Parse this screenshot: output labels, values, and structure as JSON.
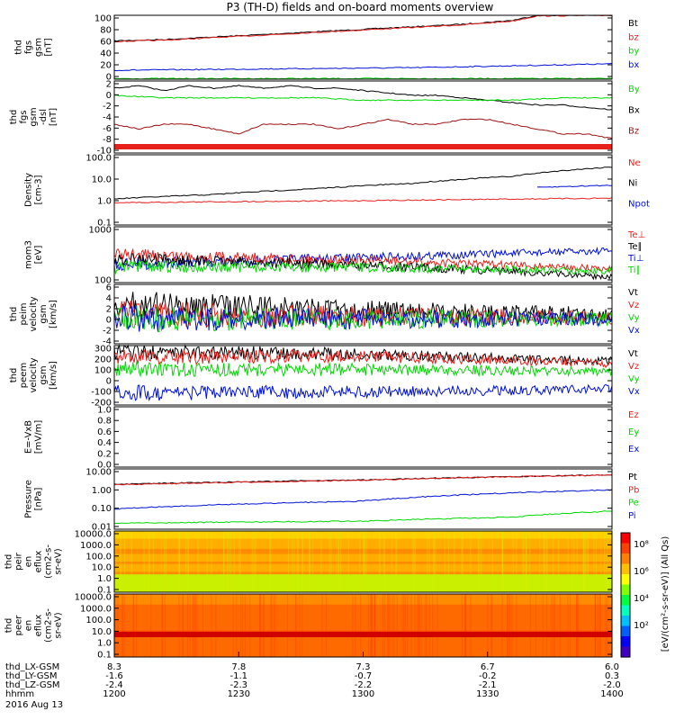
{
  "title": "P3 (TH-D) fields and on-board moments overview",
  "date_label": "2016 Aug 13",
  "colors": {
    "black": "#000000",
    "red": "#e8201c",
    "darkred": "#9c1010",
    "green": "#00d800",
    "blue": "#0010d8",
    "frame": "#000000"
  },
  "chart_data": [
    {
      "type": "line",
      "ylabel": [
        "thd",
        "fgs",
        "gsm",
        "[nT]"
      ],
      "yticks": [
        "100",
        "80",
        "60",
        "40",
        "20",
        "0"
      ],
      "ylim": [
        0,
        100
      ],
      "legend": [
        {
          "name": "Bt",
          "color": "black"
        },
        {
          "name": "bz",
          "color": "red"
        },
        {
          "name": "by",
          "color": "green"
        },
        {
          "name": "bx",
          "color": "blue"
        }
      ],
      "series": [
        {
          "name": "Bt",
          "color": "black",
          "x": [
            0,
            0.1,
            0.2,
            0.3,
            0.4,
            0.5,
            0.6,
            0.7,
            0.8,
            0.85,
            1
          ],
          "y": [
            60,
            62,
            66,
            70,
            74,
            78,
            82,
            86,
            92,
            100,
            100
          ]
        },
        {
          "name": "bz",
          "color": "red",
          "x": [
            0,
            0.1,
            0.2,
            0.3,
            0.4,
            0.5,
            0.6,
            0.7,
            0.8,
            0.85,
            1
          ],
          "y": [
            59,
            61,
            65,
            69,
            73,
            77,
            81,
            85,
            91,
            99,
            100
          ]
        },
        {
          "name": "by",
          "color": "blue",
          "x": [
            0,
            0.3,
            0.6,
            0.8,
            1
          ],
          "y": [
            14,
            16,
            18,
            21,
            24
          ]
        },
        {
          "name": "bx",
          "color": "green",
          "x": [
            0,
            1
          ],
          "y": [
            1,
            1
          ]
        }
      ]
    },
    {
      "type": "line",
      "ylabel": [
        "thd",
        "fgs",
        "gsm",
        "-dsl",
        "[nT]"
      ],
      "yticks": [
        "2",
        "0",
        "-2",
        "-4",
        "-6",
        "-8",
        "-10"
      ],
      "ylim": [
        -12,
        3
      ],
      "legend": [
        {
          "name": "By",
          "color": "green"
        },
        {
          "name": "Bx",
          "color": "black"
        },
        {
          "name": "Bz",
          "color": "darkred"
        }
      ],
      "series": [
        {
          "name": "Bx",
          "color": "black",
          "x": [
            0,
            0.05,
            0.1,
            0.15,
            0.2,
            0.25,
            0.3,
            0.35,
            0.4,
            0.45,
            0.5,
            0.55,
            0.6,
            0.65,
            0.7,
            0.75,
            0.8,
            0.85,
            0.9,
            0.95,
            1
          ],
          "y": [
            1.5,
            2,
            1,
            2,
            1.5,
            2,
            1.5,
            2,
            1.5,
            1.5,
            1,
            0.5,
            0,
            0,
            -0.5,
            -1,
            -1.5,
            -2,
            -2,
            -2.5,
            -3
          ]
        },
        {
          "name": "By",
          "color": "green",
          "x": [
            0,
            0.1,
            0.2,
            0.3,
            0.4,
            0.5,
            0.6,
            0.7,
            0.8,
            0.9,
            1
          ],
          "y": [
            0,
            -0.5,
            -0.5,
            -0.5,
            -0.5,
            -1,
            -1,
            -1,
            -1,
            -0.5,
            -0.5
          ]
        },
        {
          "name": "Bz",
          "color": "darkred",
          "x": [
            0,
            0.05,
            0.1,
            0.15,
            0.2,
            0.25,
            0.3,
            0.35,
            0.4,
            0.45,
            0.5,
            0.55,
            0.6,
            0.65,
            0.7,
            0.75,
            0.8,
            0.85,
            0.9,
            0.95,
            1
          ],
          "y": [
            -6,
            -7,
            -6,
            -6,
            -7,
            -8,
            -6,
            -6,
            -6,
            -7,
            -6,
            -5,
            -6,
            -6,
            -5,
            -5,
            -6,
            -7,
            -8,
            -8,
            -9
          ]
        }
      ]
    },
    {
      "type": "line",
      "ylabel": [
        "Density",
        "[cm-3]"
      ],
      "yticks": [
        "100.0",
        "10.0",
        "1.0",
        "0.1"
      ],
      "ylim": [
        0.1,
        100
      ],
      "scale": "log",
      "legend": [
        {
          "name": "Ne",
          "color": "red"
        },
        {
          "name": "Ni",
          "color": "black"
        },
        {
          "name": "Npot",
          "color": "blue"
        }
      ],
      "series": [
        {
          "name": "Ni",
          "color": "black",
          "x": [
            0,
            0.2,
            0.4,
            0.6,
            0.8,
            1
          ],
          "y": [
            1.3,
            2,
            3.5,
            6,
            12,
            30
          ]
        },
        {
          "name": "Ne",
          "color": "red",
          "x": [
            0,
            0.5,
            1
          ],
          "y": [
            0.9,
            1.1,
            1.4
          ]
        },
        {
          "name": "Npot",
          "color": "blue",
          "x": [
            0.85,
            1
          ],
          "y": [
            4,
            5
          ]
        }
      ]
    },
    {
      "type": "line",
      "ylabel": [
        "mom3",
        "[eV]"
      ],
      "yticks": [
        "1000",
        "100"
      ],
      "ylim": [
        100,
        3000
      ],
      "scale": "log",
      "legend": [
        {
          "name": "Te⊥",
          "color": "red"
        },
        {
          "name": "Te∥",
          "color": "black"
        },
        {
          "name": "Ti⊥",
          "color": "blue"
        },
        {
          "name": "Ti∥",
          "color": "green"
        }
      ],
      "series": [
        {
          "name": "Ti⊥",
          "color": "blue",
          "x": [
            0,
            0.5,
            1
          ],
          "y": [
            300,
            450,
            700
          ]
        },
        {
          "name": "Te⊥",
          "color": "red",
          "x": [
            0,
            0.5,
            1
          ],
          "y": [
            550,
            380,
            230
          ]
        },
        {
          "name": "Te∥",
          "color": "black",
          "x": [
            0,
            0.5,
            1
          ],
          "y": [
            420,
            280,
            140
          ]
        },
        {
          "name": "Ti∥",
          "color": "green",
          "x": [
            0,
            0.5,
            1
          ],
          "y": [
            260,
            250,
            200
          ]
        }
      ]
    },
    {
      "type": "line",
      "ylabel": [
        "thd",
        "peim",
        "velocity",
        "gsm",
        "[km/s]"
      ],
      "yticks": [
        "6",
        "4",
        "2",
        "0",
        "-2",
        "-4"
      ],
      "ylim": [
        -5,
        7
      ],
      "legend": [
        {
          "name": "Vt",
          "color": "black"
        },
        {
          "name": "Vz",
          "color": "red"
        },
        {
          "name": "Vy",
          "color": "green"
        },
        {
          "name": "Vx",
          "color": "blue"
        }
      ],
      "series": [
        {
          "name": "Vt",
          "color": "black",
          "x": [
            0,
            0.3,
            0.6,
            1
          ],
          "y": [
            3,
            2.5,
            1.5,
            1
          ]
        },
        {
          "name": "Vz",
          "color": "red",
          "x": [
            0,
            0.5,
            1
          ],
          "y": [
            1,
            0.5,
            0.3
          ]
        },
        {
          "name": "Vy",
          "color": "green",
          "x": [
            0,
            0.5,
            1
          ],
          "y": [
            0,
            0,
            0
          ]
        },
        {
          "name": "Vx",
          "color": "blue",
          "x": [
            0,
            0.5,
            1
          ],
          "y": [
            0,
            0,
            0
          ]
        }
      ]
    },
    {
      "type": "line",
      "ylabel": [
        "thd",
        "peem",
        "velocity",
        "gsm",
        "[km/s]"
      ],
      "yticks": [
        "300",
        "200",
        "100",
        "0",
        "-100",
        "-200"
      ],
      "ylim": [
        -200,
        300
      ],
      "legend": [
        {
          "name": "Vt",
          "color": "black"
        },
        {
          "name": "Vz",
          "color": "red"
        },
        {
          "name": "Vy",
          "color": "green"
        },
        {
          "name": "Vx",
          "color": "blue"
        }
      ],
      "series": [
        {
          "name": "Vt",
          "color": "black",
          "x": [
            0,
            0.5,
            1
          ],
          "y": [
            250,
            230,
            170
          ]
        },
        {
          "name": "Vz",
          "color": "red",
          "x": [
            0,
            0.5,
            1
          ],
          "y": [
            200,
            210,
            150
          ]
        },
        {
          "name": "Vy",
          "color": "green",
          "x": [
            0,
            0.5,
            1
          ],
          "y": [
            100,
            100,
            80
          ]
        },
        {
          "name": "Vx",
          "color": "blue",
          "x": [
            0,
            0.5,
            0.8,
            1
          ],
          "y": [
            -100,
            -90,
            -80,
            -60
          ]
        }
      ]
    },
    {
      "type": "line",
      "ylabel": [
        "E=-VxB",
        "[mV/m]"
      ],
      "yticks": [
        "1.0",
        "0.8",
        "0.6",
        "0.4",
        "0.2",
        "0.0"
      ],
      "ylim": [
        0,
        1
      ],
      "legend": [
        {
          "name": "Ez",
          "color": "red"
        },
        {
          "name": "Ey",
          "color": "green"
        },
        {
          "name": "Ex",
          "color": "blue"
        }
      ],
      "series": []
    },
    {
      "type": "line",
      "ylabel": [
        "Pressure",
        "[nPa]"
      ],
      "yticks": [
        "10.00",
        "1.00",
        "0.10",
        "0.01"
      ],
      "ylim": [
        0.01,
        10
      ],
      "scale": "log",
      "legend": [
        {
          "name": "Pt",
          "color": "black"
        },
        {
          "name": "Pb",
          "color": "red"
        },
        {
          "name": "Pe",
          "color": "green"
        },
        {
          "name": "Pi",
          "color": "blue"
        }
      ],
      "series": [
        {
          "name": "Pt",
          "color": "black",
          "x": [
            0,
            0.5,
            1
          ],
          "y": [
            1.7,
            2.8,
            5
          ]
        },
        {
          "name": "Pb",
          "color": "red",
          "x": [
            0,
            0.5,
            1
          ],
          "y": [
            1.6,
            2.7,
            5
          ]
        },
        {
          "name": "Pi",
          "color": "blue",
          "x": [
            0,
            0.5,
            1
          ],
          "y": [
            0.1,
            0.25,
            0.9
          ]
        },
        {
          "name": "Pe",
          "color": "green",
          "x": [
            0,
            0.5,
            0.8,
            1
          ],
          "y": [
            0.02,
            0.025,
            0.04,
            0.08
          ]
        }
      ]
    },
    {
      "type": "heatmap",
      "ylabel": [
        "thd",
        "peir",
        "en",
        "eflux",
        "(cm2-s-",
        "sr-eV)"
      ],
      "yticks": [
        "10000.0",
        "1000.0",
        "100.0",
        "10.0",
        "1.0",
        "0.1"
      ],
      "scale": "log"
    },
    {
      "type": "heatmap",
      "ylabel": [
        "thd",
        "peer",
        "en",
        "eflux",
        "(cm2-s-",
        "sr-eV)"
      ],
      "yticks": [
        "10000.0",
        "1000.0",
        "100.0",
        "10.0",
        "1.0",
        "0.1"
      ],
      "scale": "log"
    }
  ],
  "colorbar": {
    "ticks": [
      "10⁸",
      "10⁶",
      "10⁴",
      "10²"
    ],
    "label": "[eV/(cm²-s-sr-eV)] (All Qs)"
  },
  "bottom_axis": {
    "rows": [
      {
        "label": "thd_LX-GSM",
        "values": [
          "8.3",
          "7.8",
          "7.3",
          "6.7",
          "6.0"
        ]
      },
      {
        "label": "thd_LY-GSM",
        "values": [
          "-1.6",
          "-1.1",
          "-0.7",
          "-0.2",
          "0.3"
        ]
      },
      {
        "label": "thd_LZ-GSM",
        "values": [
          "-2.4",
          "-2.3",
          "-2.2",
          "-2.1",
          "-2.0"
        ]
      },
      {
        "label": "hhmm",
        "values": [
          "1200",
          "1230",
          "1300",
          "1330",
          "1400"
        ]
      }
    ]
  }
}
